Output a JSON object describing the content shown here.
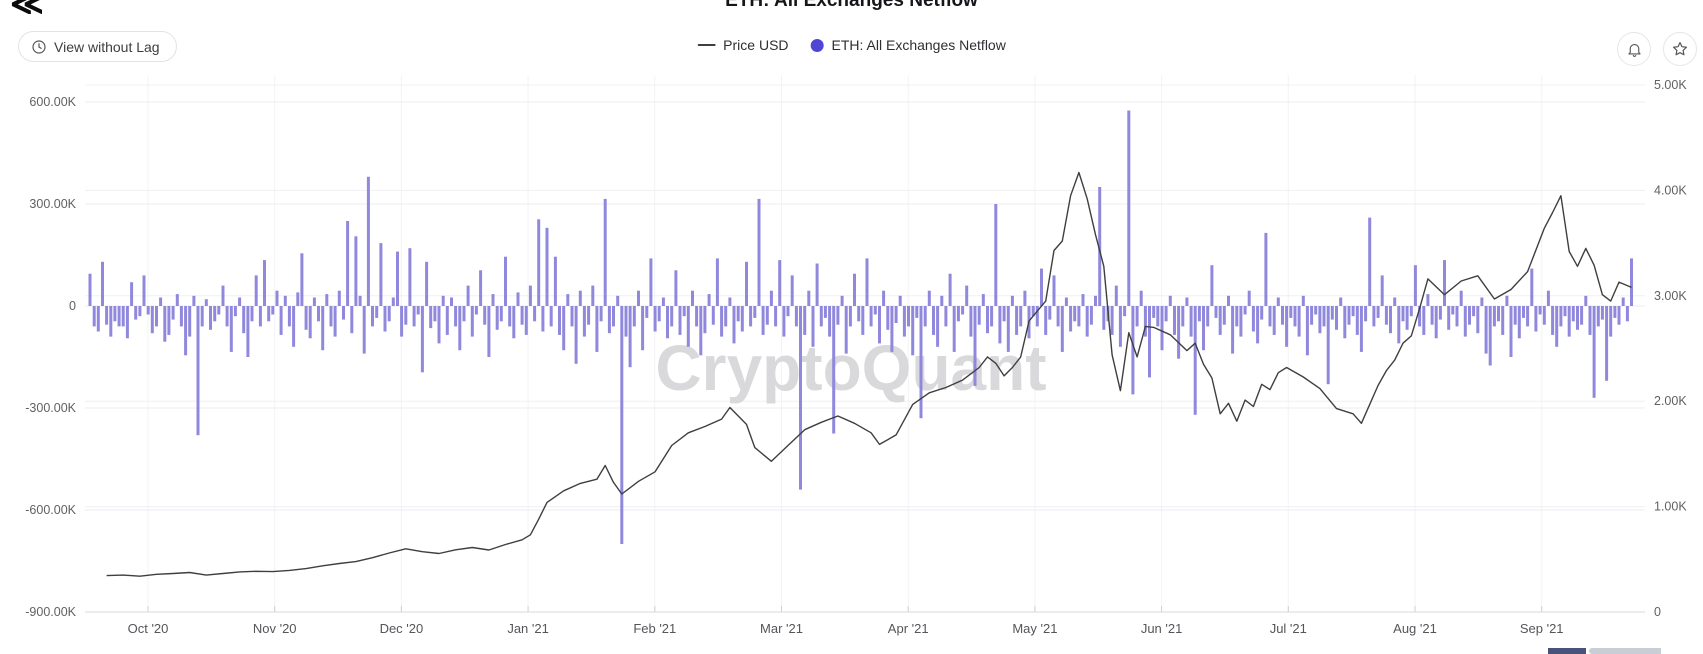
{
  "header": {
    "title": "ETH: All Exchanges Netflow",
    "lag_button": {
      "label": "View without Lag"
    },
    "legend": [
      {
        "label": "Price USD",
        "marker": "line",
        "color": "#3f3f3f"
      },
      {
        "label": "ETH: All Exchanges Netflow",
        "marker": "dot",
        "color": "#4f46d6"
      }
    ]
  },
  "watermark": "CryptoQuant",
  "chart_data": {
    "type": "combo-bar-line",
    "title": "ETH: All Exchanges Netflow",
    "legend_position": "top-center",
    "grid": "on",
    "x_axis": {
      "ticks": [
        "Oct '20",
        "Nov '20",
        "Dec '20",
        "Jan '21",
        "Feb '21",
        "Mar '21",
        "Apr '21",
        "May '21",
        "Jun '21",
        "Jul '21",
        "Aug '21",
        "Sep '21"
      ]
    },
    "left_axis": {
      "title": "ETH: All Exchanges Netflow",
      "unit": "ETH",
      "range_k": [
        -900,
        600
      ],
      "ticks": [
        {
          "v": 600,
          "label": "600.00K"
        },
        {
          "v": 300,
          "label": "300.00K"
        },
        {
          "v": 0,
          "label": "0"
        },
        {
          "v": -300,
          "label": "-300.00K"
        },
        {
          "v": -600,
          "label": "-600.00K"
        },
        {
          "v": -900,
          "label": "-900.00K"
        }
      ]
    },
    "right_axis": {
      "title": "Price USD",
      "range": [
        0,
        5000
      ],
      "ticks": [
        {
          "v": 5000,
          "label": "5.00K"
        },
        {
          "v": 4000,
          "label": "4.00K"
        },
        {
          "v": 3000,
          "label": "3.00K"
        },
        {
          "v": 2000,
          "label": "2.00K"
        },
        {
          "v": 1000,
          "label": "1.00K"
        },
        {
          "v": 0,
          "label": "0"
        }
      ]
    },
    "bar_series": {
      "name": "ETH: All Exchanges Netflow",
      "axis": "left",
      "color": "#8f88dd",
      "values_k": [
        95,
        -60,
        -75,
        130,
        -55,
        -90,
        -45,
        -60,
        -60,
        -95,
        70,
        -40,
        -30,
        90,
        -25,
        -80,
        -60,
        25,
        -105,
        -85,
        -40,
        35,
        -60,
        -145,
        -90,
        30,
        -380,
        -60,
        20,
        -70,
        -45,
        -25,
        60,
        -60,
        -135,
        -30,
        25,
        -80,
        -150,
        -45,
        90,
        -60,
        135,
        -45,
        -25,
        45,
        -85,
        30,
        -60,
        -120,
        40,
        155,
        -70,
        -95,
        25,
        -45,
        -130,
        35,
        -60,
        -90,
        45,
        -40,
        250,
        -80,
        205,
        30,
        -140,
        380,
        -60,
        -35,
        185,
        -75,
        -45,
        25,
        160,
        -90,
        -55,
        170,
        -60,
        -25,
        -195,
        130,
        -65,
        -45,
        -110,
        30,
        -85,
        25,
        -60,
        -130,
        -45,
        60,
        -90,
        -25,
        105,
        -55,
        -150,
        35,
        -70,
        -45,
        145,
        -60,
        -95,
        40,
        -55,
        -85,
        60,
        -45,
        255,
        -75,
        230,
        -60,
        145,
        -85,
        -130,
        35,
        -60,
        -170,
        45,
        -90,
        -55,
        60,
        -135,
        -45,
        315,
        -80,
        -60,
        30,
        -700,
        -90,
        -180,
        -60,
        45,
        -130,
        -35,
        140,
        -75,
        -45,
        25,
        -95,
        -60,
        105,
        -85,
        -30,
        -120,
        45,
        -60,
        -145,
        -80,
        35,
        -55,
        140,
        -90,
        -60,
        25,
        -110,
        -45,
        -75,
        130,
        -60,
        -35,
        315,
        -85,
        -55,
        45,
        -60,
        135,
        -90,
        -30,
        90,
        -60,
        -540,
        -85,
        45,
        -120,
        125,
        -60,
        -35,
        -90,
        -375,
        -55,
        30,
        -140,
        -60,
        95,
        -45,
        -85,
        140,
        -60,
        -25,
        -110,
        45,
        -70,
        -135,
        -50,
        30,
        -90,
        -60,
        -145,
        -35,
        -330,
        -60,
        45,
        -85,
        -120,
        30,
        -60,
        95,
        -135,
        -45,
        -25,
        60,
        -90,
        -235,
        -55,
        35,
        -80,
        -60,
        300,
        -110,
        -45,
        -135,
        30,
        -85,
        -60,
        45,
        -95,
        -30,
        -60,
        110,
        -85,
        -40,
        90,
        -60,
        -135,
        25,
        -75,
        -45,
        -60,
        35,
        -90,
        -55,
        30,
        350,
        -70,
        -45,
        -85,
        60,
        -120,
        -30,
        575,
        -260,
        -60,
        45,
        -90,
        -210,
        -35,
        -60,
        -130,
        -45,
        30,
        -85,
        -155,
        -60,
        25,
        -90,
        -320,
        -45,
        -130,
        -60,
        120,
        -35,
        -85,
        -55,
        30,
        -140,
        -60,
        -90,
        -25,
        45,
        -75,
        -110,
        -40,
        215,
        -60,
        -85,
        25,
        -55,
        -120,
        -35,
        -60,
        -90,
        30,
        -145,
        -55,
        -25,
        -80,
        -60,
        -230,
        -40,
        -70,
        25,
        -95,
        -55,
        -30,
        -85,
        -135,
        -45,
        260,
        -60,
        -35,
        90,
        -55,
        -80,
        25,
        -110,
        -45,
        -70,
        -30,
        120,
        -60,
        -85,
        35,
        -55,
        -95,
        -40,
        135,
        -70,
        -25,
        -60,
        45,
        -90,
        -55,
        -30,
        -80,
        25,
        -140,
        -175,
        -60,
        -45,
        -85,
        30,
        -150,
        -55,
        -95,
        -35,
        -60,
        110,
        -75,
        -25,
        -55,
        45,
        -85,
        -120,
        -60,
        -30,
        -90,
        -45,
        -70,
        -55,
        30,
        -85,
        -270,
        -60,
        -40,
        -220,
        -90,
        -35,
        -55,
        25,
        -45,
        140
      ]
    },
    "price_series": {
      "name": "Price USD",
      "axis": "right",
      "color": "#3f3f3f",
      "points": [
        [
          4,
          345
        ],
        [
          8,
          350
        ],
        [
          12,
          340
        ],
        [
          16,
          358
        ],
        [
          20,
          365
        ],
        [
          24,
          375
        ],
        [
          28,
          350
        ],
        [
          32,
          365
        ],
        [
          36,
          380
        ],
        [
          40,
          386
        ],
        [
          44,
          383
        ],
        [
          48,
          395
        ],
        [
          52,
          412
        ],
        [
          56,
          438
        ],
        [
          60,
          460
        ],
        [
          64,
          478
        ],
        [
          68,
          515
        ],
        [
          72,
          560
        ],
        [
          76,
          600
        ],
        [
          80,
          572
        ],
        [
          84,
          555
        ],
        [
          88,
          590
        ],
        [
          92,
          612
        ],
        [
          96,
          588
        ],
        [
          100,
          640
        ],
        [
          104,
          685
        ],
        [
          106,
          732
        ],
        [
          108,
          880
        ],
        [
          110,
          1040
        ],
        [
          114,
          1150
        ],
        [
          118,
          1220
        ],
        [
          122,
          1260
        ],
        [
          124,
          1390
        ],
        [
          126,
          1230
        ],
        [
          128,
          1120
        ],
        [
          132,
          1240
        ],
        [
          136,
          1330
        ],
        [
          140,
          1580
        ],
        [
          144,
          1700
        ],
        [
          148,
          1760
        ],
        [
          152,
          1830
        ],
        [
          154,
          1940
        ],
        [
          158,
          1780
        ],
        [
          160,
          1560
        ],
        [
          164,
          1430
        ],
        [
          168,
          1580
        ],
        [
          172,
          1730
        ],
        [
          176,
          1800
        ],
        [
          180,
          1860
        ],
        [
          184,
          1790
        ],
        [
          188,
          1700
        ],
        [
          190,
          1590
        ],
        [
          194,
          1680
        ],
        [
          198,
          1970
        ],
        [
          202,
          2080
        ],
        [
          206,
          2130
        ],
        [
          210,
          2200
        ],
        [
          214,
          2320
        ],
        [
          216,
          2420
        ],
        [
          218,
          2360
        ],
        [
          220,
          2240
        ],
        [
          222,
          2320
        ],
        [
          224,
          2420
        ],
        [
          226,
          2760
        ],
        [
          230,
          2950
        ],
        [
          232,
          3430
        ],
        [
          234,
          3520
        ],
        [
          236,
          3950
        ],
        [
          238,
          4170
        ],
        [
          240,
          3920
        ],
        [
          242,
          3580
        ],
        [
          244,
          3280
        ],
        [
          246,
          2440
        ],
        [
          248,
          2100
        ],
        [
          250,
          2650
        ],
        [
          252,
          2420
        ],
        [
          254,
          2710
        ],
        [
          256,
          2700
        ],
        [
          260,
          2630
        ],
        [
          264,
          2480
        ],
        [
          266,
          2550
        ],
        [
          268,
          2350
        ],
        [
          270,
          2220
        ],
        [
          272,
          1880
        ],
        [
          274,
          1980
        ],
        [
          276,
          1810
        ],
        [
          278,
          2010
        ],
        [
          280,
          1950
        ],
        [
          282,
          2160
        ],
        [
          284,
          2110
        ],
        [
          286,
          2270
        ],
        [
          288,
          2320
        ],
        [
          292,
          2230
        ],
        [
          296,
          2120
        ],
        [
          300,
          1930
        ],
        [
          304,
          1880
        ],
        [
          306,
          1790
        ],
        [
          310,
          2150
        ],
        [
          312,
          2290
        ],
        [
          314,
          2390
        ],
        [
          316,
          2550
        ],
        [
          318,
          2620
        ],
        [
          320,
          2880
        ],
        [
          322,
          3160
        ],
        [
          326,
          3010
        ],
        [
          330,
          3140
        ],
        [
          334,
          3190
        ],
        [
          338,
          2970
        ],
        [
          342,
          3060
        ],
        [
          346,
          3230
        ],
        [
          350,
          3640
        ],
        [
          352,
          3790
        ],
        [
          354,
          3950
        ],
        [
          356,
          3420
        ],
        [
          358,
          3280
        ],
        [
          360,
          3450
        ],
        [
          362,
          3290
        ],
        [
          364,
          3010
        ],
        [
          366,
          2950
        ],
        [
          368,
          3130
        ],
        [
          371,
          3080
        ]
      ]
    }
  }
}
